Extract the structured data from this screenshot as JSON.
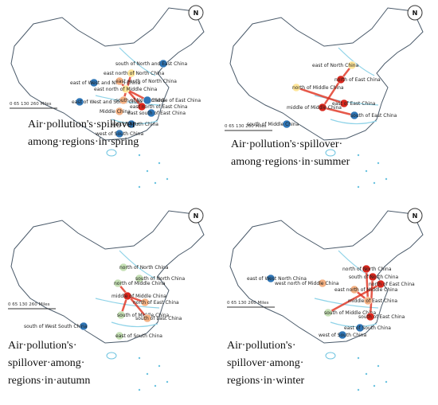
{
  "north_label": "N",
  "scale_label": "0   65  130       260 Miles",
  "panels": [
    {
      "caption": [
        "Air·pollution's·spillover·",
        "among·regions·in·spring"
      ],
      "nodes": [
        "south of North and East China",
        "east north of North China",
        "east of West and North China",
        "east south of North China",
        "east north of Middle China",
        "east of West and South China",
        "south of North China",
        "east north of East China",
        "middle of East China",
        "Middle China",
        "east south of East China",
        "east of South China",
        "west of South China"
      ]
    },
    {
      "caption": [
        "Air·pollution's·spillover·",
        "among·regions·in·summer"
      ],
      "nodes": [
        "east of North China",
        "north of East China",
        "north of Middle China",
        "middle of Middle China",
        "east of East China",
        "south of East China",
        "south of Middle China"
      ]
    },
    {
      "caption": [
        "Air·pollution's·",
        "spillover·among·",
        "regions·in·autumn"
      ],
      "nodes": [
        "north of North China",
        "south of North China",
        "north of Middle China",
        "middle of Middle China",
        "north of East China",
        "south of Middle China",
        "south of East China",
        "south of West South China",
        "east of South China"
      ]
    },
    {
      "caption": [
        "Air·pollution's·",
        "spillover·among·",
        "regions·in·winter"
      ],
      "nodes": [
        "north of North China",
        "east of West North China",
        "south of North China",
        "west north of Middle China",
        "north of East China",
        "east north of Middle China",
        "middle of East China",
        "south of Middle China",
        "south of East China",
        "east of South China",
        "west of South China"
      ]
    }
  ]
}
